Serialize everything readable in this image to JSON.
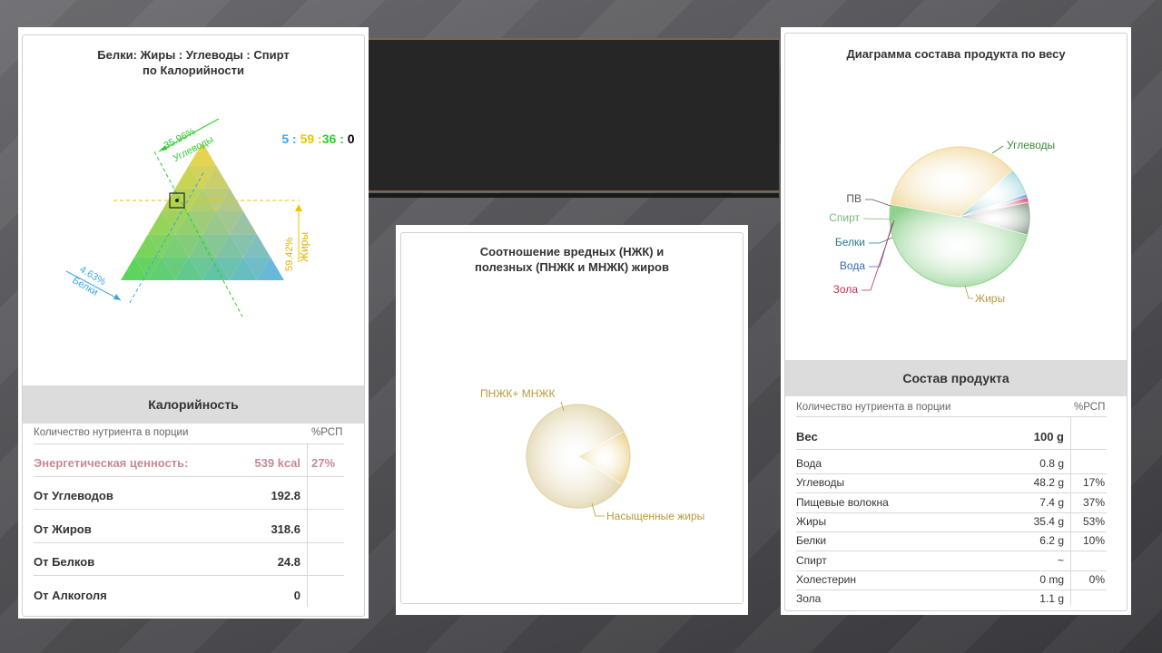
{
  "triangle_panel": {
    "title_line1": "Белки: Жиры : Углеводы : Спирт",
    "title_line2": "по Калорийности",
    "ratio": {
      "p": "5",
      "sep1": " : ",
      "f": "59",
      "sep2": " :",
      "c": "36",
      "sep3": " : ",
      "a": "0"
    },
    "labels": {
      "carbs_pct": "35.96%",
      "carbs": "Углеводы",
      "fat_pct": "59.42%",
      "fat": "Жиры",
      "protein_pct": "4.63%",
      "protein": "Белки"
    },
    "colors": {
      "protein": "#3da5e6",
      "fat": "#f2c200",
      "carbs": "#2ecc2e",
      "alcohol": "#000000"
    }
  },
  "calorie_table": {
    "header": "Калорийность",
    "col_label": "Количество нутриента в порции",
    "col_rsp": "%РСП",
    "energy": {
      "label": "Энергетическая ценность:",
      "value": "539 kcal",
      "pct": "27%"
    },
    "rows": [
      {
        "label": "От Углеводов",
        "value": "192.8"
      },
      {
        "label": "От Жиров",
        "value": "318.6"
      },
      {
        "label": "От Белков",
        "value": "24.8"
      },
      {
        "label": "От Алкоголя",
        "value": "0"
      }
    ]
  },
  "fats_panel": {
    "title_line1": "Соотношение вредных (НЖК) и",
    "title_line2": "полезных (ПНЖК и МНЖК) жиров"
  },
  "weight_panel": {
    "title": "Диаграмма состава продукта по весу"
  },
  "composition_table": {
    "header": "Состав продукта",
    "col_label": "Количество нутриента в порции",
    "col_rsp": "%РСП",
    "weight": {
      "label": "Вес",
      "value": "100 g"
    },
    "rows": [
      {
        "label": "Вода",
        "value": "0.8 g",
        "pct": ""
      },
      {
        "label": "Углеводы",
        "value": "48.2 g",
        "pct": "17%"
      },
      {
        "label": "Пищевые волокна",
        "value": "7.4 g",
        "pct": "37%"
      },
      {
        "label": "Жиры",
        "value": "35.4 g",
        "pct": "53%"
      },
      {
        "label": "Белки",
        "value": "6.2 g",
        "pct": "10%"
      },
      {
        "label": "Спирт",
        "value": "~",
        "pct": ""
      },
      {
        "label": "Холестерин",
        "value": "0 mg",
        "pct": "0%"
      },
      {
        "label": "Зола",
        "value": "1.1 g",
        "pct": ""
      }
    ]
  },
  "chart_data": [
    {
      "type": "ternary",
      "series": [
        {
          "name": "Белки",
          "values": [
            4.63
          ]
        },
        {
          "name": "Жиры",
          "values": [
            59.42
          ]
        },
        {
          "name": "Углеводы",
          "values": [
            35.96
          ]
        }
      ]
    },
    {
      "type": "pie",
      "categories": [
        "ПНЖК+ МНЖК",
        "Насыщенные жиры"
      ],
      "values": [
        0.17,
        0.83
      ],
      "colors": [
        "#ecd08a",
        "#ddd0a4"
      ],
      "label_color": "#b89a3a"
    },
    {
      "type": "pie",
      "categories": [
        "Углеводы",
        "Жиры",
        "Белки",
        "Вода",
        "Зола",
        "Спирт",
        "ПВ"
      ],
      "values": [
        48.2,
        35.4,
        6.2,
        0.8,
        1.1,
        0.0,
        7.4
      ],
      "colors": [
        "#8fd18f",
        "#f0d79a",
        "#9fd6dc",
        "#7fa8d8",
        "#e0607a",
        "#b6e0b6",
        "#9aaa9a"
      ],
      "label_colors": [
        "#3a8a3a",
        "#b89a3a",
        "#2a7a8a",
        "#3a6aa8",
        "#c03050",
        "#7aba7a",
        "#555555"
      ]
    }
  ]
}
